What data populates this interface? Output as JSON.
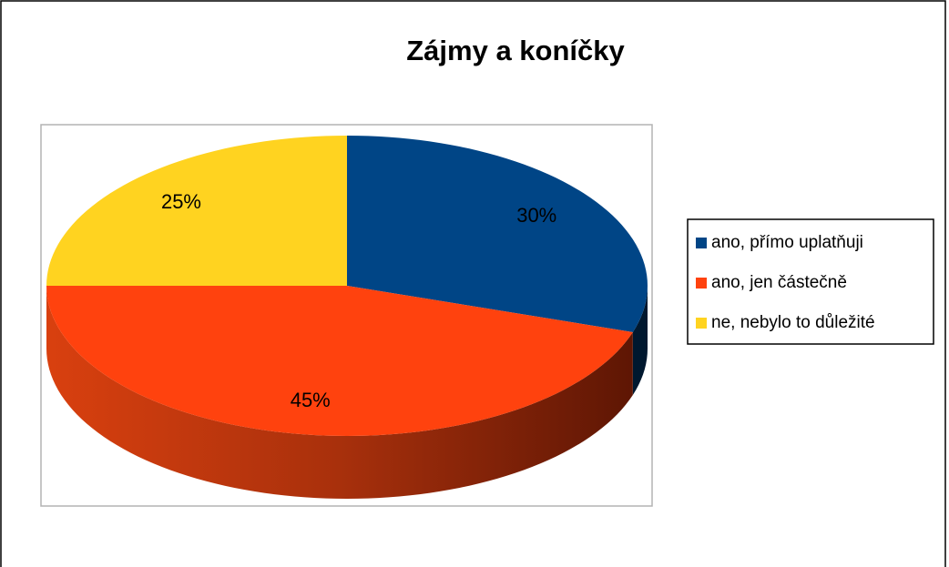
{
  "chart_data": {
    "type": "pie",
    "title": "Zájmy a koníčky",
    "categories": [
      "ano, přímo uplatňuji",
      "ano, jen částečně",
      "ne, nebylo to důležité"
    ],
    "values": [
      30,
      45,
      25
    ],
    "value_labels": [
      "30%",
      "45%",
      "25%"
    ],
    "colors": [
      "#004586",
      "#ff420e",
      "#ffd320"
    ],
    "legend": "right",
    "three_d": true
  }
}
